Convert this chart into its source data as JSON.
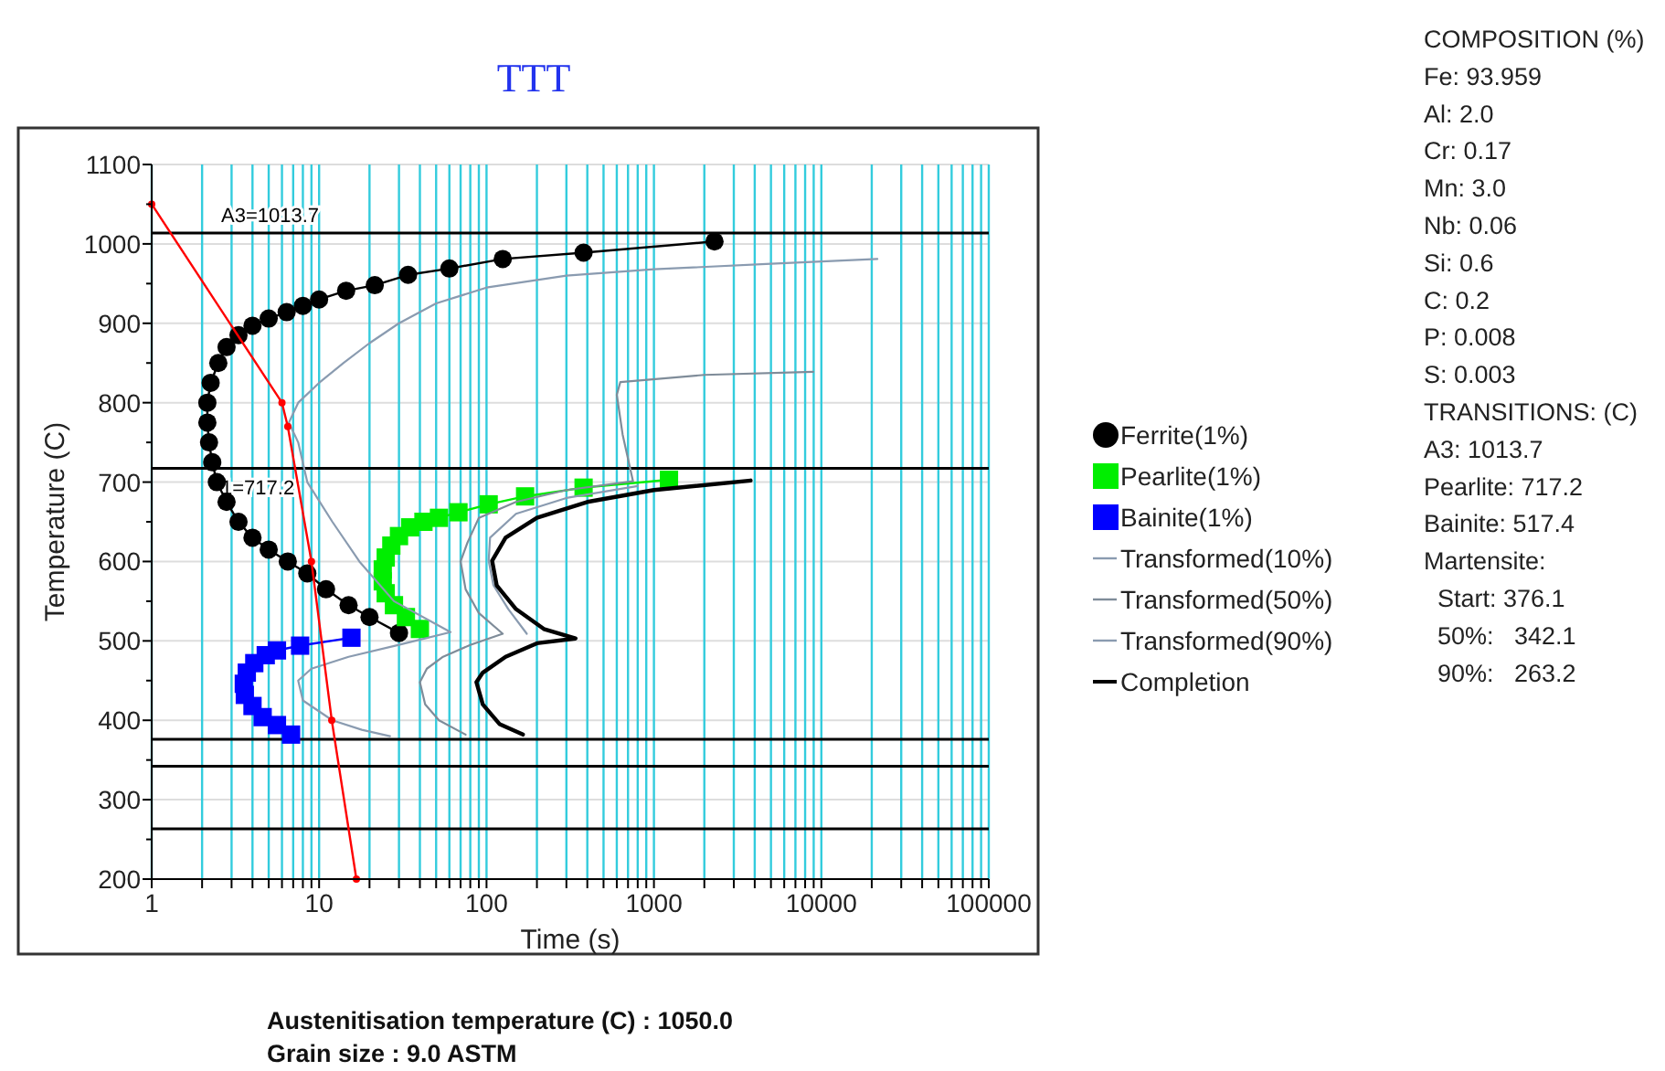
{
  "chart_data": {
    "type": "line",
    "title": "TTT",
    "xlabel": "Time (s)",
    "ylabel": "Temperature (C)",
    "log": "x",
    "grid": true,
    "legend": "right",
    "xlim": [
      1,
      100000
    ],
    "ylim": [
      200,
      1100
    ],
    "xticks": [
      1,
      {
        "value": 2,
        "label": null
      },
      {
        "value": 3,
        "label": null
      },
      {
        "value": 4,
        "label": null
      },
      {
        "value": 5,
        "label": null
      },
      {
        "value": 6,
        "label": null
      },
      {
        "value": 7,
        "label": null
      },
      {
        "value": 8,
        "label": null
      },
      {
        "value": 9,
        "label": null
      },
      10,
      {
        "value": 20,
        "label": null
      },
      {
        "value": 30,
        "label": null
      },
      {
        "value": 40,
        "label": null
      },
      {
        "value": 50,
        "label": null
      },
      {
        "value": 60,
        "label": null
      },
      {
        "value": 70,
        "label": null
      },
      {
        "value": 80,
        "label": null
      },
      {
        "value": 90,
        "label": null
      },
      100,
      {
        "value": 200,
        "label": null
      },
      {
        "value": 300,
        "label": null
      },
      {
        "value": 400,
        "label": null
      },
      {
        "value": 500,
        "label": null
      },
      {
        "value": 600,
        "label": null
      },
      {
        "value": 700,
        "label": null
      },
      {
        "value": 800,
        "label": null
      },
      {
        "value": 900,
        "label": null
      },
      1000,
      {
        "value": 2000,
        "label": null
      },
      {
        "value": 3000,
        "label": null
      },
      {
        "value": 4000,
        "label": null
      },
      {
        "value": 5000,
        "label": null
      },
      {
        "value": 6000,
        "label": null
      },
      {
        "value": 7000,
        "label": null
      },
      {
        "value": 8000,
        "label": null
      },
      {
        "value": 9000,
        "label": null
      },
      10000,
      {
        "value": 20000,
        "label": null
      },
      {
        "value": 30000,
        "label": null
      },
      {
        "value": 40000,
        "label": null
      },
      {
        "value": 50000,
        "label": null
      },
      {
        "value": 60000,
        "label": null
      },
      {
        "value": 70000,
        "label": null
      },
      {
        "value": 80000,
        "label": null
      },
      {
        "value": 90000,
        "label": null
      },
      100000
    ],
    "yticks": [
      200,
      {
        "value": 250,
        "label": null
      },
      300,
      {
        "value": 350,
        "label": null
      },
      400,
      {
        "value": 450,
        "label": null
      },
      500,
      {
        "value": 550,
        "label": null
      },
      600,
      {
        "value": 650,
        "label": null
      },
      700,
      {
        "value": 750,
        "label": null
      },
      800,
      {
        "value": 850,
        "label": null
      },
      900,
      {
        "value": 950,
        "label": null
      },
      1000,
      {
        "value": 1050,
        "label": null
      },
      1100
    ],
    "ref_lines": [
      {
        "axis": "y",
        "value": 1013.7,
        "label": "A3=1013.7",
        "color": "#000000"
      },
      {
        "axis": "y",
        "value": 717.2,
        "label": "1=717.2",
        "color": "#000000"
      },
      {
        "axis": "y",
        "value": 376.1,
        "color": "#000000"
      },
      {
        "axis": "y",
        "value": 342.1,
        "color": "#000000"
      },
      {
        "axis": "y",
        "value": 263.2,
        "color": "#000000"
      }
    ],
    "series": [
      {
        "name": "Ferrite(1%)",
        "color": "#000000",
        "marker": "circle",
        "x": [
          30,
          20,
          15,
          11,
          8.5,
          6.5,
          5,
          4,
          3.3,
          2.8,
          2.45,
          2.3,
          2.2,
          2.15,
          2.15,
          2.25,
          2.5,
          2.8,
          3.3,
          4,
          5,
          6.4,
          8,
          10,
          14.5,
          21.5,
          34,
          60,
          125,
          380,
          2300
        ],
        "values": [
          510,
          530,
          545,
          565,
          585,
          600,
          615,
          630,
          650,
          675,
          700,
          725,
          750,
          775,
          800,
          825,
          850,
          870,
          885,
          897,
          906,
          914,
          922,
          930,
          941,
          948,
          961,
          969,
          981,
          989,
          1003
        ]
      },
      {
        "name": "Pearlite(1%)",
        "color": "#00ee00",
        "marker": "square",
        "x": [
          40,
          33,
          28,
          25,
          24,
          24,
          25,
          27,
          30,
          35,
          42,
          52,
          68,
          103,
          170,
          380,
          1230
        ],
        "values": [
          515,
          530,
          545,
          560,
          575,
          590,
          605,
          620,
          632,
          643,
          650,
          655,
          662,
          672,
          682,
          693,
          703
        ]
      },
      {
        "name": "Bainite(1%)",
        "color": "#0000ff",
        "marker": "square",
        "x": [
          6.8,
          5.6,
          4.6,
          4,
          3.6,
          3.55,
          3.7,
          4.1,
          4.8,
          5.6,
          7.7,
          15.6
        ],
        "values": [
          382,
          394,
          404,
          418,
          432,
          446,
          460,
          472,
          482,
          488,
          494,
          504
        ]
      },
      {
        "name": "Transformed(10%)",
        "color": "#8a9bb0",
        "marker": "none",
        "x": [
          21600,
          5000,
          1000,
          300,
          100,
          50,
          30,
          20,
          14,
          10,
          7.5,
          6.6,
          7.5,
          8.5,
          12,
          17.4,
          28,
          61,
          30,
          15,
          9,
          7.5,
          8,
          12,
          18,
          26.5
        ],
        "values": [
          981,
          975,
          968,
          960,
          945,
          925,
          900,
          875,
          850,
          825,
          800,
          775,
          750,
          700,
          650,
          600,
          550,
          511,
          495,
          480,
          465,
          450,
          425,
          400,
          388,
          380
        ]
      },
      {
        "name": "Transformed(50%)",
        "color": "#7f8c99",
        "marker": "none",
        "x": [
          8950,
          2000,
          630,
          600,
          650,
          750,
          300,
          150,
          90,
          77,
          70,
          75,
          90,
          125,
          80,
          55,
          44,
          40,
          43,
          52,
          75
        ],
        "values": [
          839,
          835,
          826,
          810,
          760,
          701,
          690,
          675,
          655,
          624,
          600,
          565,
          535,
          509,
          495,
          480,
          465,
          448,
          420,
          400,
          382
        ]
      },
      {
        "name": "Transformed(90%)",
        "color": "#8a9bb0",
        "marker": "none",
        "x": [
          800,
          300,
          150,
          105,
          103,
          110,
          135,
          174
        ],
        "values": [
          695,
          680,
          660,
          630,
          601,
          570,
          540,
          509
        ]
      },
      {
        "name": "Completion",
        "color": "#000000",
        "marker": "none",
        "x": [
          3780,
          1000,
          400,
          200,
          130,
          108,
          115,
          150,
          220,
          340,
          200,
          130,
          95,
          87,
          95,
          120,
          165
        ],
        "values": [
          702,
          690,
          675,
          655,
          630,
          601,
          570,
          540,
          515,
          503,
          497,
          480,
          460,
          448,
          420,
          395,
          382
        ]
      },
      {
        "type": "line",
        "color": "#ff0000",
        "marker": "circle",
        "x": [
          1,
          6,
          6.5,
          9,
          11.9,
          16.7
        ],
        "values": [
          1050,
          800,
          770,
          600,
          400,
          200
        ]
      }
    ],
    "annotations": [
      "COMPOSITION (%)",
      "Fe: 93.959",
      "Al: 2.0",
      "Cr: 0.17",
      "Mn: 3.0",
      "Nb: 0.06",
      "Si: 0.6",
      "C: 0.2",
      "P: 0.008",
      "S: 0.003",
      "TRANSITIONS: (C)",
      "A3: 1013.7",
      "Pearlite: 717.2",
      "Bainite: 517.4",
      "Martensite:",
      "  Start: 376.1",
      "  50%:   342.1",
      "  90%:   263.2",
      "Austenitisation temperature (C) : 1050.0",
      "Grain size : 9.0 ASTM"
    ]
  }
}
